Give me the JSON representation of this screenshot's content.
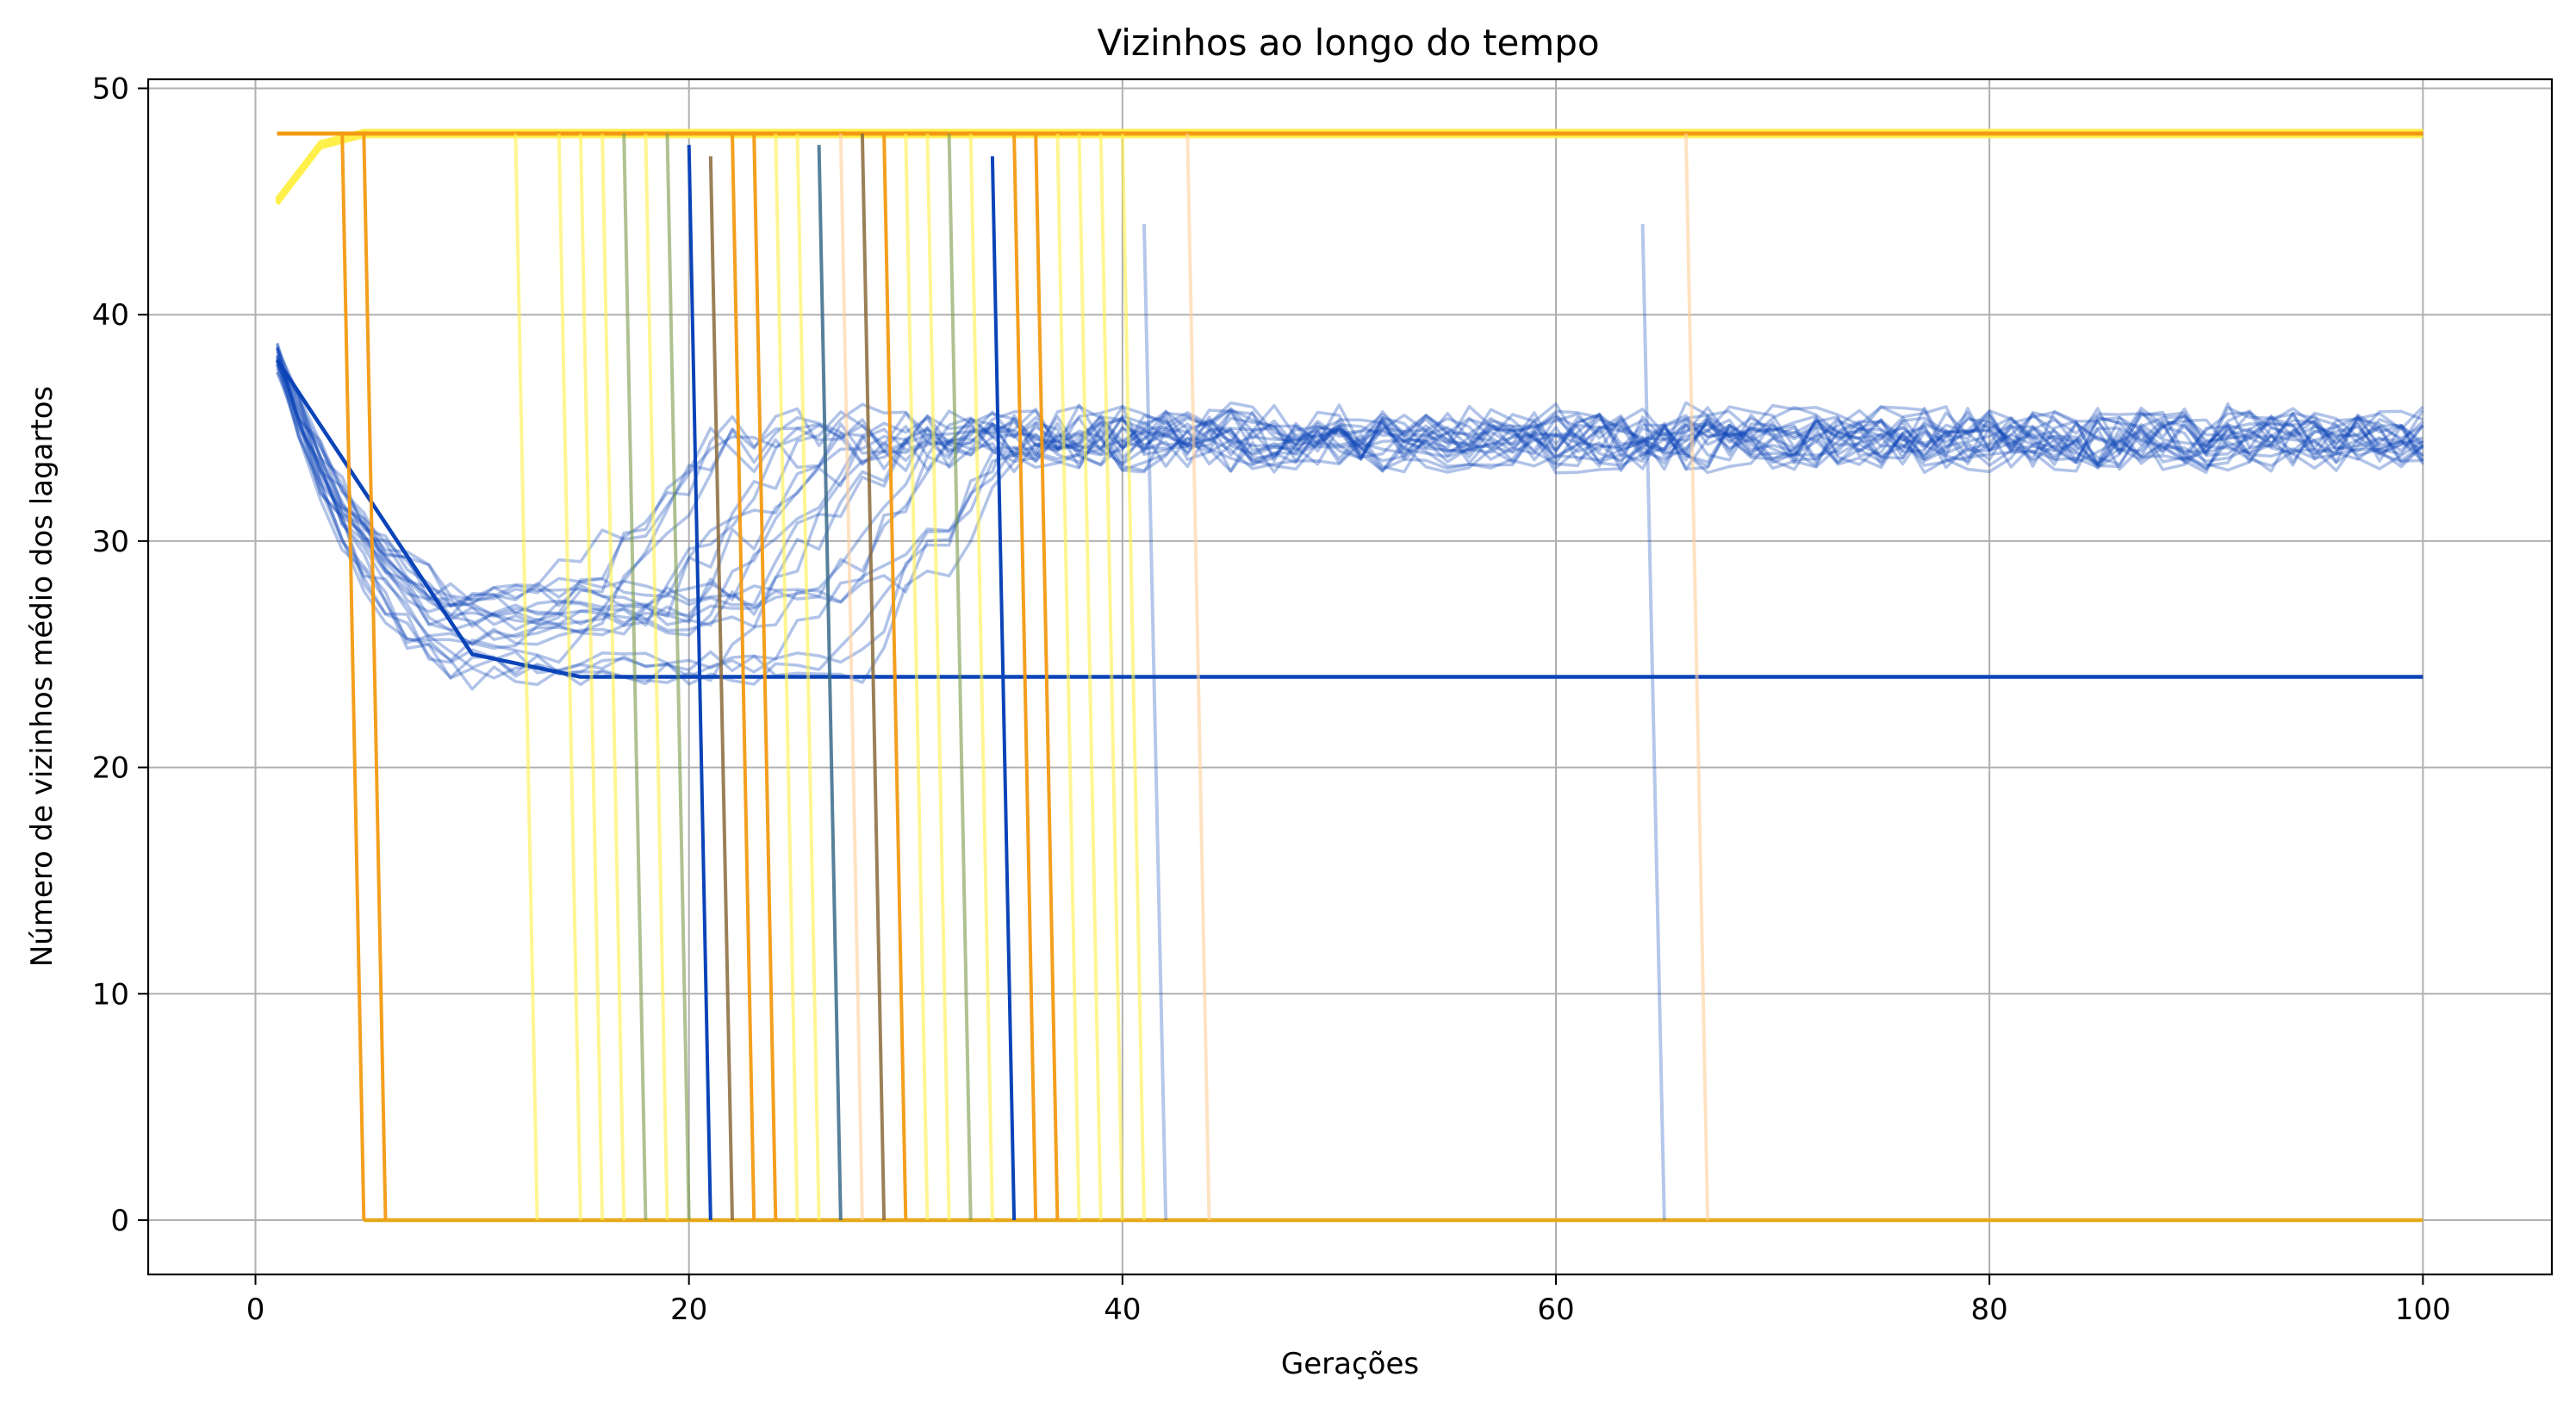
{
  "chart_data": {
    "type": "line",
    "title": "Vizinhos ao longo do tempo",
    "xlabel": "Gerações",
    "ylabel": "Número de vizinhos médio dos lagartos",
    "xlim": [
      -4.95,
      105.95
    ],
    "ylim": [
      -2.4,
      50.4
    ],
    "x_ticks": [
      0,
      20,
      40,
      60,
      80,
      100
    ],
    "y_ticks": [
      0,
      10,
      20,
      30,
      40,
      50
    ],
    "grid": true,
    "legend": "none",
    "colors": {
      "surviving_blue": "#0b44b8",
      "extinct_orange": "#f39a12",
      "extinct_yellow": "#fff04a",
      "grid": "#b0b0b0"
    },
    "series_groups": [
      {
        "kind": "surviving_oscillating_blue",
        "count": 22,
        "color": "#0b44b8",
        "opacity": 0.32,
        "start_value": 38,
        "minimum_approx": 26,
        "min_generation_approx": 10,
        "steady_value_approx": 34.5,
        "generations": [
          1,
          100
        ]
      },
      {
        "kind": "stabilized_blue_24",
        "count": 1,
        "color": "#0b44b8",
        "opacity": 1.0,
        "values_keypoints": [
          [
            1,
            38
          ],
          [
            10,
            25
          ],
          [
            15,
            24
          ],
          [
            100,
            24
          ]
        ]
      },
      {
        "kind": "yellow_saturated_48",
        "count": 12,
        "color": "#fff04a",
        "opacity": 0.7,
        "values_keypoints": [
          [
            1,
            45
          ],
          [
            3,
            47.5
          ],
          [
            5,
            48
          ],
          [
            100,
            48
          ]
        ]
      },
      {
        "kind": "orange_constant_48",
        "count": 3,
        "color": "#f39a12",
        "opacity": 0.9,
        "values_keypoints": [
          [
            1,
            48
          ],
          [
            100,
            48
          ]
        ]
      },
      {
        "kind": "zero_baseline",
        "count": 1,
        "color": "#e7a91c",
        "opacity": 1.0,
        "values_keypoints": [
          [
            5,
            0
          ],
          [
            100,
            0
          ]
        ]
      }
    ],
    "collapse_events": [
      {
        "generation": 4,
        "to": 5,
        "from_value": 48,
        "color": "#f39a12",
        "opacity": 0.95
      },
      {
        "generation": 5,
        "to": 6,
        "from_value": 48,
        "color": "#f39a12",
        "opacity": 0.95
      },
      {
        "generation": 12,
        "to": 13,
        "from_value": 48,
        "color": "#fff04a",
        "opacity": 0.6
      },
      {
        "generation": 14,
        "to": 15,
        "from_value": 48,
        "color": "#fff04a",
        "opacity": 0.6
      },
      {
        "generation": 15,
        "to": 16,
        "from_value": 48,
        "color": "#fff04a",
        "opacity": 0.6
      },
      {
        "generation": 16,
        "to": 17,
        "from_value": 48,
        "color": "#fff04a",
        "opacity": 0.6
      },
      {
        "generation": 17,
        "to": 18,
        "from_value": 48,
        "color": "#7a9a4a",
        "opacity": 0.6
      },
      {
        "generation": 18,
        "to": 19,
        "from_value": 48,
        "color": "#fff04a",
        "opacity": 0.6
      },
      {
        "generation": 19,
        "to": 20,
        "from_value": 48,
        "color": "#7a9a4a",
        "opacity": 0.6
      },
      {
        "generation": 20,
        "to": 21,
        "from_value": 47.5,
        "color": "#0b44b8",
        "opacity": 1.0
      },
      {
        "generation": 21,
        "to": 22,
        "from_value": 47,
        "color": "#8a6a3a",
        "opacity": 0.85
      },
      {
        "generation": 22,
        "to": 23,
        "from_value": 48,
        "color": "#f39a12",
        "opacity": 0.95
      },
      {
        "generation": 23,
        "to": 24,
        "from_value": 48,
        "color": "#f39a12",
        "opacity": 0.95
      },
      {
        "generation": 24,
        "to": 25,
        "from_value": 48,
        "color": "#fff04a",
        "opacity": 0.6
      },
      {
        "generation": 25,
        "to": 26,
        "from_value": 48,
        "color": "#fff04a",
        "opacity": 0.6
      },
      {
        "generation": 26,
        "to": 27,
        "from_value": 47.5,
        "color": "#3a6a8a",
        "opacity": 0.85
      },
      {
        "generation": 27,
        "to": 28,
        "from_value": 48,
        "color": "#ffcf9a",
        "opacity": 0.6
      },
      {
        "generation": 28,
        "to": 29,
        "from_value": 48,
        "color": "#8a6a3a",
        "opacity": 0.85
      },
      {
        "generation": 29,
        "to": 30,
        "from_value": 48,
        "color": "#f39a12",
        "opacity": 0.95
      },
      {
        "generation": 30,
        "to": 31,
        "from_value": 48,
        "color": "#fff04a",
        "opacity": 0.6
      },
      {
        "generation": 31,
        "to": 32,
        "from_value": 48,
        "color": "#fff04a",
        "opacity": 0.6
      },
      {
        "generation": 32,
        "to": 33,
        "from_value": 48,
        "color": "#7a9a4a",
        "opacity": 0.6
      },
      {
        "generation": 33,
        "to": 34,
        "from_value": 48,
        "color": "#fff04a",
        "opacity": 0.6
      },
      {
        "generation": 34,
        "to": 35,
        "from_value": 47,
        "color": "#0b44b8",
        "opacity": 1.0
      },
      {
        "generation": 35,
        "to": 36,
        "from_value": 48,
        "color": "#f39a12",
        "opacity": 0.95
      },
      {
        "generation": 36,
        "to": 37,
        "from_value": 48,
        "color": "#f39a12",
        "opacity": 0.95
      },
      {
        "generation": 37,
        "to": 38,
        "from_value": 48,
        "color": "#fff04a",
        "opacity": 0.6
      },
      {
        "generation": 38,
        "to": 39,
        "from_value": 48,
        "color": "#fff04a",
        "opacity": 0.6
      },
      {
        "generation": 39,
        "to": 40,
        "from_value": 48,
        "color": "#fff04a",
        "opacity": 0.6
      },
      {
        "generation": 40,
        "to": 41,
        "from_value": 48,
        "color": "#fff04a",
        "opacity": 0.6
      },
      {
        "generation": 41,
        "to": 42,
        "from_value": 44,
        "color": "#0b44b8",
        "opacity": 0.3
      },
      {
        "generation": 43,
        "to": 44,
        "from_value": 48,
        "color": "#ffcf9a",
        "opacity": 0.6
      },
      {
        "generation": 64,
        "to": 65,
        "from_value": 44,
        "color": "#0b44b8",
        "opacity": 0.3
      },
      {
        "generation": 66,
        "to": 67,
        "from_value": 48,
        "color": "#ffcf9a",
        "opacity": 0.6
      }
    ]
  }
}
